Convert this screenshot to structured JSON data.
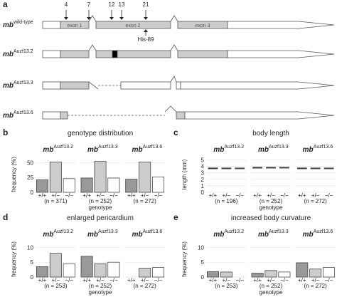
{
  "panel_a": {
    "label": "a",
    "rows": [
      {
        "name": "mb",
        "superscript": "wild-type"
      },
      {
        "name": "mb",
        "superscript": "Auzf13.2"
      },
      {
        "name": "mb",
        "superscript": "Auzf13.3"
      },
      {
        "name": "mb",
        "superscript": "Auzf13.6"
      }
    ],
    "exons": [
      "exon 1",
      "exon 2",
      "exon 3"
    ],
    "sites": [
      "4",
      "7",
      "12",
      "13",
      "21"
    ],
    "annotation": "His-89"
  },
  "chart_data": [
    {
      "panel": "b",
      "type": "bar",
      "title": "genotype distribution",
      "ylabel": "frequency (%)",
      "xlabel": "genotype",
      "ylim": [
        0,
        60
      ],
      "yticks": [
        0,
        25,
        50
      ],
      "grid": true,
      "categories": [
        "+/+",
        "+/−",
        "−/−"
      ],
      "colors": [
        "#999999",
        "#cccccc",
        "#ffffff"
      ],
      "facets": [
        {
          "name": "mb",
          "superscript": "Auzf13.2",
          "n_label": "(n = 371)",
          "values": [
            21,
            51,
            23
          ]
        },
        {
          "name": "mb",
          "superscript": "Auzf13.3",
          "n_label": "(n = 252)",
          "values": [
            24,
            52,
            24
          ]
        },
        {
          "name": "mb",
          "superscript": "Auzf13.6",
          "n_label": "(n = 272)",
          "values": [
            22,
            51,
            26
          ]
        }
      ]
    },
    {
      "panel": "c",
      "type": "box",
      "title": "body length",
      "ylabel": "length (mm)",
      "xlabel": "genotype",
      "ylim": [
        0,
        5.5
      ],
      "yticks": [
        0,
        1,
        2,
        3,
        4,
        5
      ],
      "grid": true,
      "categories": [
        "+/+",
        "+/−",
        "−/−"
      ],
      "colors": [
        "#999999",
        "#cccccc",
        "#ffffff"
      ],
      "facets": [
        {
          "name": "mb",
          "superscript": "Auzf13.2",
          "n_label": "(n = 196)",
          "q1": [
            3.6,
            3.6,
            3.6
          ],
          "median": [
            3.7,
            3.7,
            3.7
          ],
          "q3": [
            3.8,
            3.8,
            3.8
          ]
        },
        {
          "name": "mb",
          "superscript": "Auzf13.3",
          "n_label": "(n = 252)",
          "q1": [
            3.7,
            3.7,
            3.7
          ],
          "median": [
            3.8,
            3.8,
            3.8
          ],
          "q3": [
            3.9,
            3.9,
            3.9
          ]
        },
        {
          "name": "mb",
          "superscript": "Auzf13.6",
          "n_label": "(n = 272)",
          "q1": [
            3.6,
            3.6,
            3.6
          ],
          "median": [
            3.7,
            3.7,
            3.7
          ],
          "q3": [
            3.8,
            3.8,
            3.8
          ]
        }
      ]
    },
    {
      "panel": "d",
      "type": "bar",
      "title": "enlarged pericardium",
      "ylabel": "frequency (%)",
      "xlabel": "genotype",
      "ylim": [
        0,
        12
      ],
      "yticks": [
        0,
        5,
        10
      ],
      "grid": true,
      "categories": [
        "+/+",
        "+/−",
        "−/−"
      ],
      "colors": [
        "#999999",
        "#cccccc",
        "#ffffff"
      ],
      "facets": [
        {
          "name": "mb",
          "superscript": "Auzf13.2",
          "n_label": "(n = 253)",
          "values": [
            3.5,
            8,
            4.5
          ]
        },
        {
          "name": "mb",
          "superscript": "Auzf13.3",
          "n_label": "(n = 252)",
          "values": [
            7,
            4.5,
            5
          ]
        },
        {
          "name": "mb",
          "superscript": "Auzf13.6",
          "n_label": "(n = 272)",
          "values": [
            0,
            3,
            3.2
          ]
        }
      ]
    },
    {
      "panel": "e",
      "type": "bar",
      "title": "increased body curvature",
      "ylabel": "frequency (%)",
      "xlabel": "genotype",
      "ylim": [
        0,
        12
      ],
      "yticks": [
        0,
        5,
        10
      ],
      "grid": true,
      "categories": [
        "+/+",
        "+/−",
        "−/−"
      ],
      "colors": [
        "#999999",
        "#cccccc",
        "#ffffff"
      ],
      "facets": [
        {
          "name": "mb",
          "superscript": "Auzf13.2",
          "n_label": "(n = 253)",
          "values": [
            1.8,
            1.7,
            0
          ]
        },
        {
          "name": "mb",
          "superscript": "Auzf13.3",
          "n_label": "(n = 252)",
          "values": [
            1.3,
            2.2,
            1.7
          ]
        },
        {
          "name": "mb",
          "superscript": "Auzf13.6",
          "n_label": "(n = 272)",
          "values": [
            4.8,
            2.7,
            3.2
          ]
        }
      ]
    }
  ]
}
